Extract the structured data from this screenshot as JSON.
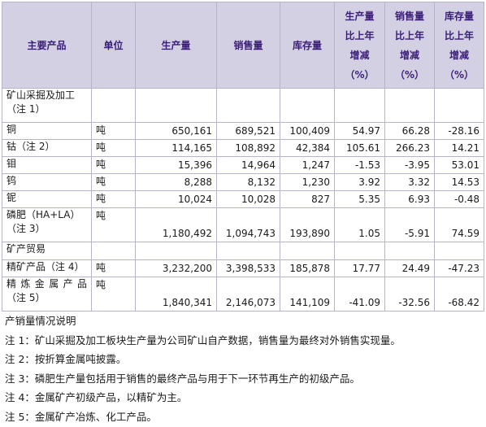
{
  "headers": {
    "product": "主要产品",
    "unit": "单位",
    "production": "生产量",
    "sales": "销售量",
    "inventory": "库存量",
    "production_yoy": [
      "生产量",
      "比上年",
      "增减",
      "（%）"
    ],
    "sales_yoy": [
      "销售量",
      "比上年",
      "增减",
      "（%）"
    ],
    "inventory_yoy": [
      "库存量",
      "比上年",
      "增减",
      "（%）"
    ]
  },
  "section1": {
    "label_line1": "矿山采掘及加工",
    "label_line2": "（注 1）"
  },
  "rows1": [
    {
      "name": "铜",
      "unit": "吨",
      "production": "650,161",
      "sales": "689,521",
      "inventory": "100,409",
      "production_yoy": "54.97",
      "sales_yoy": "66.28",
      "inventory_yoy": "-28.16"
    },
    {
      "name": "钴（注 2）",
      "unit": "吨",
      "production": "114,165",
      "sales": "108,892",
      "inventory": "42,384",
      "production_yoy": "105.61",
      "sales_yoy": "266.23",
      "inventory_yoy": "14.21"
    },
    {
      "name": "钼",
      "unit": "吨",
      "production": "15,396",
      "sales": "14,964",
      "inventory": "1,247",
      "production_yoy": "-1.53",
      "sales_yoy": "-3.95",
      "inventory_yoy": "53.01"
    },
    {
      "name": "钨",
      "unit": "吨",
      "production": "8,288",
      "sales": "8,132",
      "inventory": "1,230",
      "production_yoy": "3.92",
      "sales_yoy": "3.32",
      "inventory_yoy": "14.53"
    },
    {
      "name": "铌",
      "unit": "吨",
      "production": "10,024",
      "sales": "10,028",
      "inventory": "827",
      "production_yoy": "5.35",
      "sales_yoy": "6.93",
      "inventory_yoy": "-0.48"
    }
  ],
  "phosphate": {
    "name_line1": "磷肥（HA+LA）",
    "name_line2": "（注 3）",
    "unit": "吨",
    "production": "1,180,492",
    "sales": "1,094,743",
    "inventory": "193,890",
    "production_yoy": "1.05",
    "sales_yoy": "-5.91",
    "inventory_yoy": "74.59"
  },
  "section2": {
    "label": "矿产贸易"
  },
  "concentrate": {
    "name": "精矿产品（注 4）",
    "unit": "吨",
    "production": "3,232,200",
    "sales": "3,398,533",
    "inventory": "185,878",
    "production_yoy": "17.77",
    "sales_yoy": "24.49",
    "inventory_yoy": "-47.23"
  },
  "refined": {
    "name_line1": "精炼金属产品",
    "name_line2": "（注 5）",
    "unit": "吨",
    "production": "1,840,341",
    "sales": "2,146,073",
    "inventory": "141,109",
    "production_yoy": "-41.09",
    "sales_yoy": "-32.56",
    "inventory_yoy": "-68.42"
  },
  "notes": {
    "title": "产销量情况说明",
    "items": [
      "注 1：矿山采掘及加工板块生产量为公司矿山自产数据，销售量为最终对外销售实现量。",
      "注 2：按折算金属吨披露。",
      "注 3：磷肥生产量包括用于销售的最终产品与用于下一环节再生产的初级产品。",
      "注 4：金属矿产初级产品，以精矿为主。",
      "注 5：金属矿产冶炼、化工产品。"
    ]
  }
}
